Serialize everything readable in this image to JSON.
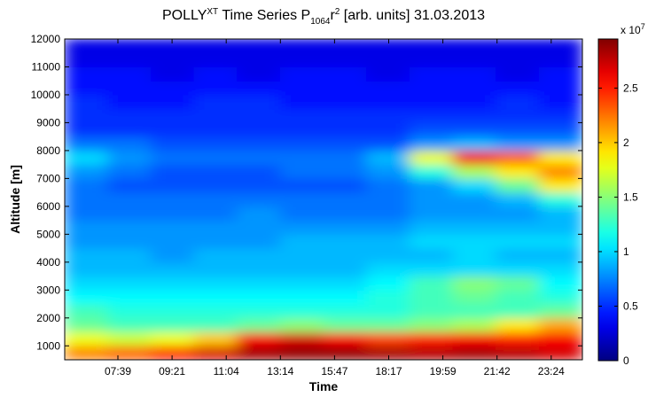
{
  "chart_data": {
    "type": "heatmap",
    "title": [
      "POLLY",
      "XT",
      " Time Series P",
      "1064",
      "r",
      "2",
      " [arb. units] 31.03.2013"
    ],
    "xlabel": "Time",
    "ylabel": "Altitude [m]",
    "x_tick_labels": [
      "07:39",
      "09:21",
      "11:04",
      "13:14",
      "15:47",
      "18:17",
      "19:59",
      "21:42",
      "23:24"
    ],
    "ylim": [
      500,
      12000
    ],
    "yticks": [
      1000,
      2000,
      3000,
      4000,
      5000,
      6000,
      7000,
      8000,
      9000,
      10000,
      11000,
      12000
    ],
    "colormap": "jet",
    "clim": [
      0,
      2.95
    ],
    "cticks": [
      0,
      0.5,
      1,
      1.5,
      2,
      2.5
    ],
    "colorbar_label": [
      "x 10",
      "7"
    ],
    "z": [
      [
        2.2,
        2.3,
        2.5,
        2.7,
        2.85,
        2.9,
        2.9,
        2.85,
        2.8,
        2.85,
        2.8,
        2.7
      ],
      [
        1.8,
        1.7,
        1.8,
        2.0,
        2.6,
        2.7,
        2.6,
        2.4,
        2.5,
        2.6,
        2.5,
        2.6
      ],
      [
        1.4,
        1.3,
        1.3,
        1.3,
        1.4,
        1.5,
        1.4,
        1.4,
        1.5,
        1.6,
        1.9,
        2.1
      ],
      [
        1.3,
        1.2,
        1.2,
        1.2,
        1.2,
        1.2,
        1.2,
        1.2,
        1.3,
        1.3,
        1.3,
        1.4
      ],
      [
        1.1,
        1.1,
        1.1,
        1.1,
        1.1,
        1.1,
        1.1,
        1.2,
        1.3,
        1.4,
        1.3,
        1.2
      ],
      [
        1.0,
        1.0,
        1.0,
        1.0,
        1.0,
        1.0,
        1.0,
        1.1,
        1.3,
        1.5,
        1.4,
        1.1
      ],
      [
        0.9,
        0.9,
        0.9,
        0.9,
        0.9,
        0.9,
        0.9,
        1.0,
        1.0,
        1.0,
        1.0,
        1.0
      ],
      [
        0.9,
        0.9,
        0.8,
        0.9,
        0.9,
        0.9,
        0.9,
        0.9,
        0.9,
        1.0,
        0.9,
        0.9
      ],
      [
        0.8,
        0.8,
        0.8,
        0.8,
        0.8,
        0.9,
        0.9,
        0.9,
        1.0,
        1.0,
        1.0,
        1.0
      ],
      [
        0.8,
        0.8,
        0.8,
        0.8,
        0.8,
        0.8,
        0.8,
        0.8,
        0.9,
        0.9,
        0.9,
        0.9
      ],
      [
        0.7,
        0.7,
        0.7,
        0.7,
        0.8,
        0.7,
        0.7,
        0.7,
        0.8,
        0.8,
        0.8,
        0.9
      ],
      [
        0.7,
        0.7,
        0.7,
        0.7,
        0.7,
        0.7,
        0.7,
        0.7,
        0.8,
        0.8,
        0.9,
        1.2
      ],
      [
        0.7,
        0.6,
        0.6,
        0.6,
        0.6,
        0.6,
        0.6,
        0.7,
        0.8,
        1.0,
        1.4,
        1.9
      ],
      [
        0.8,
        0.7,
        0.6,
        0.6,
        0.6,
        0.7,
        0.7,
        0.8,
        1.2,
        1.6,
        1.9,
        2.2
      ],
      [
        1.0,
        0.8,
        0.7,
        0.7,
        0.7,
        0.7,
        0.7,
        0.9,
        1.8,
        2.6,
        2.3,
        1.9
      ],
      [
        0.7,
        0.7,
        0.6,
        0.6,
        0.6,
        0.6,
        0.6,
        0.6,
        0.8,
        0.9,
        0.8,
        0.8
      ],
      [
        0.5,
        0.5,
        0.5,
        0.5,
        0.5,
        0.5,
        0.5,
        0.5,
        0.6,
        0.6,
        0.6,
        0.6
      ],
      [
        0.5,
        0.5,
        0.5,
        0.5,
        0.5,
        0.5,
        0.5,
        0.5,
        0.5,
        0.5,
        0.5,
        0.5
      ],
      [
        0.5,
        0.4,
        0.4,
        0.5,
        0.5,
        0.4,
        0.4,
        0.4,
        0.4,
        0.4,
        0.5,
        0.4
      ],
      [
        0.4,
        0.4,
        0.4,
        0.4,
        0.4,
        0.4,
        0.4,
        0.4,
        0.4,
        0.4,
        0.4,
        0.4
      ],
      [
        0.4,
        0.4,
        0.3,
        0.4,
        0.3,
        0.4,
        0.4,
        0.3,
        0.4,
        0.4,
        0.3,
        0.4
      ],
      [
        0.3,
        0.3,
        0.3,
        0.3,
        0.3,
        0.3,
        0.3,
        0.3,
        0.3,
        0.3,
        0.3,
        0.3
      ],
      [
        0.3,
        0.3,
        0.3,
        0.3,
        0.3,
        0.3,
        0.3,
        0.3,
        0.3,
        0.3,
        0.3,
        0.3
      ]
    ]
  }
}
